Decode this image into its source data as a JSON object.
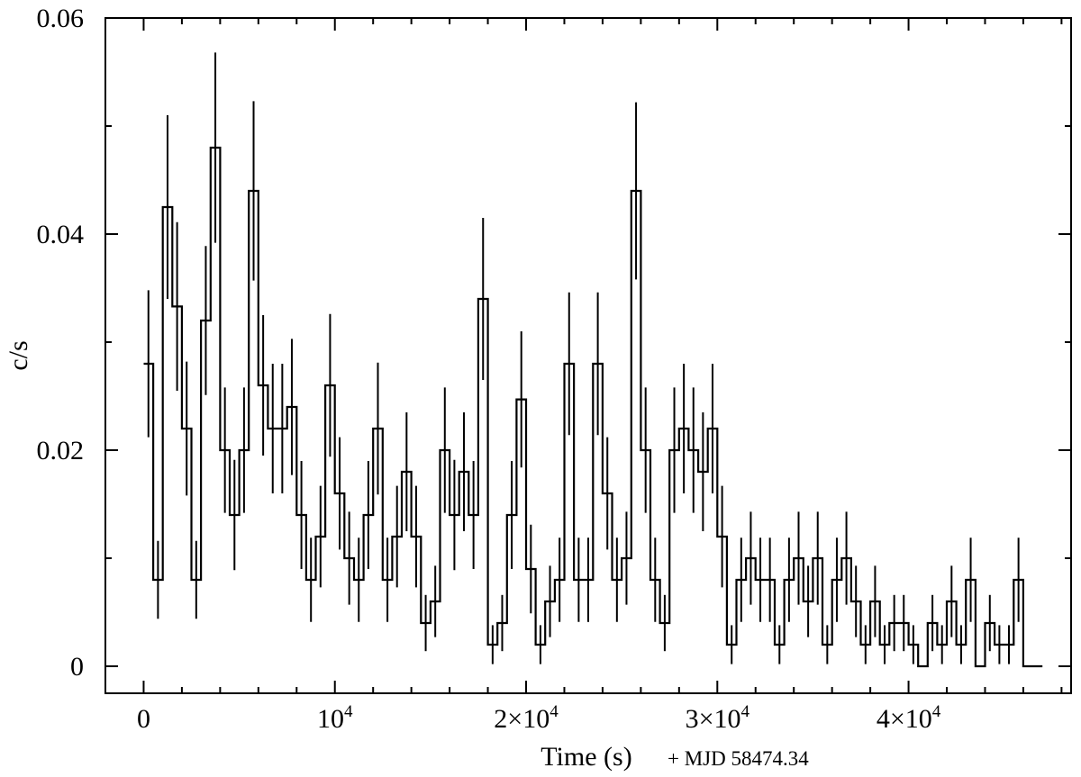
{
  "chart_data": {
    "type": "line",
    "style": "histogram-step-with-error-bars",
    "xlabel": "Time (s)",
    "xlabel_note": "+ MJD 58474.34",
    "ylabel": "c/s",
    "xlim": [
      -2000,
      48500
    ],
    "ylim": [
      -0.0025,
      0.06
    ],
    "grid": false,
    "x_ticks": [
      {
        "value": 0,
        "base": "0",
        "exp": ""
      },
      {
        "value": 10000,
        "base": "10",
        "exp": "4"
      },
      {
        "value": 20000,
        "base": "2×10",
        "exp": "4"
      },
      {
        "value": 30000,
        "base": "3×10",
        "exp": "4"
      },
      {
        "value": 40000,
        "base": "4×10",
        "exp": "4"
      }
    ],
    "y_ticks": [
      {
        "value": 0,
        "label": "0"
      },
      {
        "value": 0.02,
        "label": "0.02"
      },
      {
        "value": 0.04,
        "label": "0.04"
      },
      {
        "value": 0.06,
        "label": "0.06"
      }
    ],
    "bin_width_s": 500,
    "x": [
      250,
      750,
      1250,
      1750,
      2250,
      2750,
      3250,
      3750,
      4250,
      4750,
      5250,
      5750,
      6250,
      6750,
      7250,
      7750,
      8250,
      8750,
      9250,
      9750,
      10250,
      10750,
      11250,
      11750,
      12250,
      12750,
      13250,
      13750,
      14250,
      14750,
      15250,
      15750,
      16250,
      16750,
      17250,
      17750,
      18250,
      18750,
      19250,
      19750,
      20250,
      20750,
      21250,
      21750,
      22250,
      22750,
      23250,
      23750,
      24250,
      24750,
      25250,
      25750,
      26250,
      26750,
      27250,
      27750,
      28250,
      28750,
      29250,
      29750,
      30250,
      30750,
      31250,
      31750,
      32250,
      32750,
      33250,
      33750,
      34250,
      34750,
      35250,
      35750,
      36250,
      36750,
      37250,
      37750,
      38250,
      38750,
      39250,
      39750,
      40250,
      40750,
      41250,
      41750,
      42250,
      42750,
      43250,
      43750,
      44250,
      44750,
      45250,
      45750,
      46250,
      46750
    ],
    "y": [
      0.028,
      0.008,
      0.0425,
      0.0333,
      0.022,
      0.008,
      0.032,
      0.048,
      0.02,
      0.014,
      0.02,
      0.044,
      0.026,
      0.022,
      0.022,
      0.024,
      0.014,
      0.008,
      0.012,
      0.026,
      0.016,
      0.01,
      0.008,
      0.014,
      0.022,
      0.008,
      0.012,
      0.018,
      0.012,
      0.004,
      0.006,
      0.02,
      0.014,
      0.018,
      0.014,
      0.034,
      0.002,
      0.004,
      0.014,
      0.0247,
      0.009,
      0.002,
      0.006,
      0.008,
      0.028,
      0.008,
      0.008,
      0.028,
      0.016,
      0.008,
      0.01,
      0.044,
      0.02,
      0.008,
      0.004,
      0.02,
      0.022,
      0.02,
      0.018,
      0.022,
      0.012,
      0.002,
      0.008,
      0.01,
      0.008,
      0.008,
      0.002,
      0.008,
      0.01,
      0.006,
      0.01,
      0.002,
      0.008,
      0.01,
      0.006,
      0.002,
      0.006,
      0.002,
      0.004,
      0.004,
      0.002,
      0,
      0.004,
      0.002,
      0.006,
      0.002,
      0.008,
      0,
      0.004,
      0.002,
      0.002,
      0.008,
      0,
      0
    ],
    "y_err": [
      0.0068,
      0.0036,
      0.0085,
      0.0078,
      0.0062,
      0.0036,
      0.0069,
      0.0088,
      0.0058,
      0.0051,
      0.0058,
      0.0083,
      0.0065,
      0.006,
      0.006,
      0.0063,
      0.005,
      0.0039,
      0.0047,
      0.0066,
      0.0052,
      0.0043,
      0.0039,
      0.005,
      0.0061,
      0.0039,
      0.0047,
      0.0055,
      0.0047,
      0.0026,
      0.0033,
      0.0058,
      0.0051,
      0.0055,
      0.005,
      0.0075,
      0.0018,
      0.0026,
      0.005,
      0.0063,
      0.0041,
      0.0018,
      0.0033,
      0.0039,
      0.0066,
      0.0039,
      0.0039,
      0.0066,
      0.0052,
      0.0039,
      0.0043,
      0.0082,
      0.0058,
      0.0039,
      0.0026,
      0.0058,
      0.006,
      0.0058,
      0.0055,
      0.006,
      0.0047,
      0.0018,
      0.0039,
      0.0043,
      0.0039,
      0.0039,
      0.0018,
      0.0039,
      0.0043,
      0.0033,
      0.0043,
      0.0018,
      0.0039,
      0.0043,
      0.0033,
      0.0018,
      0.0033,
      0.0018,
      0.0026,
      0.0026,
      0.0018,
      0,
      0.0026,
      0.0018,
      0.0033,
      0.0018,
      0.0039,
      0,
      0.0026,
      0.0018,
      0.0018,
      0.0039,
      0,
      0
    ]
  }
}
